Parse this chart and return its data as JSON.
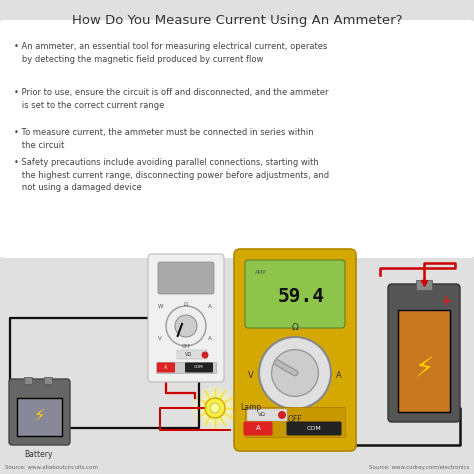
{
  "title": "How Do You Measure Current Using An Ammeter?",
  "title_fontsize": 9.5,
  "background_color": "#e0e0e0",
  "bullet_box_color": "#ffffff",
  "bullets": [
    "• An ammeter, an essential tool for measuring electrical current, operates\n   by detecting the magnetic field produced by current flow",
    "• Prior to use, ensure the circuit is off and disconnected, and the ammeter\n   is set to the correct current range",
    "• To measure current, the ammeter must be connected in series within\n   the circuit",
    "• Safety precautions include avoiding parallel connections, starting with\n   the highest current range, disconnecting power before adjustments, and\n   not using a damaged device"
  ],
  "bullet_fontsize": 6.0,
  "source_left": "Source: www.allaboutcircuits.com",
  "source_right": "Source: www.codrey.com/electronics",
  "source_fontsize": 4.0,
  "multimeter_small_body": "#f0f0f0",
  "multimeter_small_screen": "#aaaaaa",
  "multimeter_big_body": "#d4a800",
  "multimeter_big_screen_bg": "#8ec44a",
  "multimeter_big_display": "59.4",
  "multimeter_big_display_fontsize": 14,
  "amp_label": "AMP",
  "ohm_label": "Ω",
  "v_label": "V",
  "a_label": "A",
  "off_label": "OFF",
  "battery_body_color": "#c87820",
  "battery_case_color": "#555555",
  "wire_red": "#cc0000",
  "wire_black": "#111111",
  "lamp_color": "#ffee55",
  "lamp_glow_color": "#ffff88"
}
